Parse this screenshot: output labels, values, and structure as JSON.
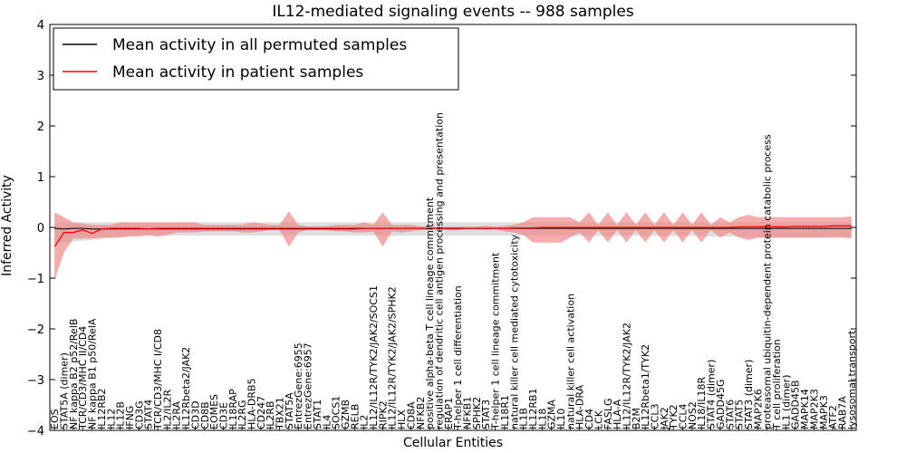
{
  "chart_data": {
    "type": "line",
    "title": "IL12-mediated signaling events -- 988 samples",
    "xlabel": "Cellular Entities",
    "ylabel": "Inferred Activity",
    "ylim": [
      -4,
      4
    ],
    "yticks": [
      -4,
      -3,
      -2,
      -1,
      0,
      1,
      2,
      3,
      4
    ],
    "ytick_labels": [
      "−4",
      "−3",
      "−2",
      "−1",
      "0",
      "1",
      "2",
      "3",
      "4"
    ],
    "legend": {
      "placement": "top-left",
      "entries": [
        {
          "label": "Mean activity in all permuted samples",
          "color": "#000000"
        },
        {
          "label": "Mean activity in patient samples",
          "color": "#ff0000"
        }
      ]
    },
    "colors": {
      "patient_line": "#ff0000",
      "patient_band": "#f08080",
      "permuted_line": "#000000",
      "permuted_band": "#c8c8c8"
    },
    "categories": [
      "EOS",
      "STAT5A (dimer)",
      "NF kappa B2 p52/RelB",
      "TCR/CD3/MHC II/CD4",
      "NF kappa B1 p50/RelA",
      "IL12RB2",
      "IL12",
      "IL12B",
      "IFNG",
      "CD3G",
      "STAT4",
      "TCR/CD3/MHC I/CD8",
      "IL2/IL2R",
      "IL2RA",
      "IL12Rbeta2/JAK2",
      "CD3D",
      "CD8B",
      "EOMES",
      "CD3E",
      "IL18RAP",
      "IL2RG",
      "HLA-DRB5",
      "CD247",
      "IL2RB",
      "TBX21",
      "STAT5A",
      "EntrezGene:6955",
      "EntrezGene:6957",
      "STAT1",
      "IL4",
      "SOCS1",
      "GZMB",
      "RELB",
      "IL2",
      "IL12/IL12R/TYK2/JAK2/SOCS1",
      "RIPK2",
      "IL12/IL12R/TYK2/JAK2/SPHK2",
      "HLX",
      "CD8A",
      "NFKB2",
      "positive alpha-beta T cell lineage commitment",
      "regulation of dendritic cell antigen processing and presentation",
      "ERAP1",
      "T-helper 1 cell differentiation",
      "NFKB1",
      "SPHK2",
      "STAT3",
      "T-helper 1 cell lineage commitment",
      "IL18R1",
      "natural killer cell mediated cytotoxicity",
      "IL1B",
      "IL12RB1",
      "IL18",
      "GZMA",
      "IL10",
      "natural killer cell activation",
      "HLA-DRA",
      "CD4",
      "LCK",
      "FASLG",
      "HLA-A",
      "IL12/IL12R/TYK2/JAK2",
      "B2M",
      "IL12Rbeta1/TYK2",
      "CCL3",
      "JAK2",
      "TYK2",
      "CCL4",
      "NOS2",
      "IL18/IL18R",
      "STAT4 (dimer)",
      "GADD45G",
      "STAT6",
      "STAT5",
      "STAT3 (dimer)",
      "MAP2K6",
      "proteasomal ubiquitin-dependent protein catabolic process",
      "T cell proliferation",
      "IL1 (dimer)",
      "GADD45B",
      "MAPK14",
      "MAP2K3",
      "MAPK3",
      "ATF2",
      "RAB7A",
      "lysosomal transport"
    ],
    "series": [
      {
        "name": "Mean activity in all permuted samples",
        "values": [
          -0.02,
          -0.03,
          -0.02,
          -0.02,
          -0.03,
          -0.03,
          -0.03,
          -0.03,
          -0.03,
          -0.03,
          -0.03,
          -0.03,
          -0.03,
          -0.03,
          -0.03,
          -0.03,
          -0.03,
          -0.03,
          -0.03,
          -0.03,
          -0.03,
          -0.03,
          -0.03,
          -0.03,
          -0.03,
          -0.03,
          -0.03,
          -0.03,
          -0.03,
          -0.03,
          -0.03,
          -0.03,
          -0.03,
          -0.02,
          -0.02,
          -0.02,
          -0.02,
          -0.02,
          -0.02,
          -0.02,
          -0.02,
          -0.02,
          -0.02,
          -0.02,
          -0.02,
          -0.02,
          -0.02,
          -0.02,
          -0.02,
          -0.02,
          -0.02,
          -0.02,
          -0.02,
          -0.02,
          -0.02,
          -0.02,
          -0.02,
          -0.02,
          -0.02,
          -0.02,
          -0.02,
          -0.02,
          -0.02,
          -0.02,
          -0.02,
          -0.02,
          -0.02,
          -0.02,
          -0.02,
          -0.02,
          -0.02,
          -0.02,
          -0.02,
          -0.02,
          -0.02,
          -0.02,
          -0.02,
          -0.02,
          -0.02,
          -0.02,
          -0.02,
          -0.02,
          -0.02,
          -0.02,
          -0.02,
          -0.02
        ]
      },
      {
        "name": "Mean activity in patient samples",
        "values": [
          -0.38,
          -0.1,
          -0.1,
          -0.05,
          -0.12,
          -0.03,
          -0.02,
          -0.02,
          -0.02,
          -0.02,
          -0.03,
          -0.02,
          -0.02,
          -0.02,
          -0.02,
          -0.02,
          -0.02,
          -0.02,
          -0.02,
          -0.02,
          -0.02,
          -0.02,
          -0.02,
          -0.02,
          -0.02,
          -0.02,
          -0.02,
          -0.02,
          -0.02,
          -0.02,
          -0.02,
          -0.02,
          -0.02,
          -0.02,
          -0.02,
          -0.02,
          -0.02,
          -0.02,
          -0.02,
          -0.02,
          -0.02,
          -0.02,
          -0.03,
          -0.03,
          -0.02,
          -0.02,
          -0.02,
          -0.02,
          -0.02,
          -0.01,
          -0.01,
          -0.01,
          0.0,
          0.0,
          0.0,
          0.0,
          0.0,
          0.0,
          0.0,
          0.0,
          0.0,
          0.0,
          0.0,
          0.0,
          0.0,
          0.0,
          0.0,
          0.0,
          0.0,
          0.0,
          0.0,
          0.0,
          0.0,
          0.01,
          0.01,
          0.01,
          0.01,
          0.01,
          0.01,
          0.02,
          0.02,
          0.02,
          0.02,
          0.03,
          0.03,
          0.03
        ]
      },
      {
        "name": "permuted_band_upper",
        "values": [
          0.1,
          0.1,
          0.1,
          0.1,
          0.1,
          0.1,
          0.1,
          0.1,
          0.1,
          0.1,
          0.1,
          0.1,
          0.1,
          0.1,
          0.1,
          0.1,
          0.1,
          0.1,
          0.1,
          0.1,
          0.1,
          0.1,
          0.1,
          0.1,
          0.1,
          0.1,
          0.1,
          0.1,
          0.1,
          0.1,
          0.1,
          0.1,
          0.1,
          0.1,
          0.1,
          0.1,
          0.1,
          0.1,
          0.1,
          0.1,
          0.1,
          0.1,
          0.1,
          0.1,
          0.1,
          0.1,
          0.1,
          0.1,
          0.1,
          0.1,
          0.1,
          0.1,
          0.1,
          0.1,
          0.1,
          0.1,
          0.1,
          0.1,
          0.1,
          0.1,
          0.1,
          0.1,
          0.1,
          0.1,
          0.1,
          0.1,
          0.1,
          0.1,
          0.1,
          0.1,
          0.1,
          0.1,
          0.1,
          0.1,
          0.1,
          0.1,
          0.1,
          0.1,
          0.1,
          0.1,
          0.1,
          0.1,
          0.1,
          0.1,
          0.1,
          0.1
        ]
      },
      {
        "name": "permuted_band_lower",
        "values": [
          -0.3,
          -0.3,
          -0.28,
          -0.26,
          -0.25,
          -0.22,
          -0.2,
          -0.18,
          -0.16,
          -0.16,
          -0.16,
          -0.16,
          -0.16,
          -0.16,
          -0.16,
          -0.16,
          -0.16,
          -0.16,
          -0.16,
          -0.16,
          -0.16,
          -0.16,
          -0.16,
          -0.16,
          -0.16,
          -0.16,
          -0.16,
          -0.16,
          -0.16,
          -0.16,
          -0.16,
          -0.16,
          -0.16,
          -0.16,
          -0.16,
          -0.16,
          -0.16,
          -0.16,
          -0.16,
          -0.16,
          -0.16,
          -0.16,
          -0.16,
          -0.16,
          -0.16,
          -0.16,
          -0.16,
          -0.16,
          -0.16,
          -0.16,
          -0.16,
          -0.16,
          -0.16,
          -0.16,
          -0.16,
          -0.16,
          -0.16,
          -0.16,
          -0.16,
          -0.16,
          -0.16,
          -0.16,
          -0.16,
          -0.17,
          -0.17,
          -0.17,
          -0.17,
          -0.17,
          -0.17,
          -0.17,
          -0.18,
          -0.18,
          -0.18,
          -0.18,
          -0.18,
          -0.2,
          -0.2,
          -0.2,
          -0.2,
          -0.2,
          -0.2,
          -0.2,
          -0.2,
          -0.18,
          -0.18,
          -0.17
        ]
      },
      {
        "name": "patient_band_upper",
        "values": [
          0.3,
          0.2,
          0.1,
          0.08,
          0.05,
          0.05,
          0.05,
          0.1,
          0.1,
          0.1,
          0.1,
          0.1,
          0.1,
          0.1,
          0.1,
          0.1,
          0.05,
          0.05,
          0.05,
          0.05,
          0.05,
          0.1,
          0.08,
          0.05,
          0.05,
          0.32,
          0.05,
          0.02,
          0.02,
          0.02,
          0.05,
          0.05,
          0.05,
          0.1,
          0.05,
          0.3,
          0.05,
          0.05,
          0.05,
          0.02,
          0.01,
          0.01,
          0.01,
          0.01,
          0.01,
          0.01,
          0.03,
          0.01,
          0.03,
          0.05,
          0.1,
          0.2,
          0.2,
          0.2,
          0.2,
          0.2,
          0.1,
          0.3,
          0.05,
          0.3,
          0.05,
          0.3,
          0.05,
          0.3,
          0.05,
          0.3,
          0.05,
          0.3,
          0.05,
          0.3,
          0.05,
          0.2,
          0.1,
          0.2,
          0.25,
          0.2,
          0.2,
          0.2,
          0.2,
          0.2,
          0.2,
          0.2,
          0.2,
          0.2,
          0.2,
          0.22
        ]
      },
      {
        "name": "patient_band_lower",
        "values": [
          -1.05,
          -0.5,
          -0.22,
          -0.22,
          -0.22,
          -0.2,
          -0.2,
          -0.2,
          -0.18,
          -0.18,
          -0.15,
          -0.18,
          -0.15,
          -0.1,
          -0.1,
          -0.1,
          -0.08,
          -0.08,
          -0.08,
          -0.08,
          -0.1,
          -0.1,
          -0.08,
          -0.05,
          -0.05,
          -0.38,
          -0.1,
          -0.05,
          -0.05,
          -0.05,
          -0.08,
          -0.08,
          -0.1,
          -0.1,
          -0.08,
          -0.38,
          -0.08,
          -0.1,
          -0.08,
          -0.05,
          -0.05,
          -0.03,
          -0.03,
          -0.03,
          -0.03,
          -0.03,
          -0.05,
          -0.03,
          -0.08,
          -0.1,
          -0.15,
          -0.3,
          -0.3,
          -0.3,
          -0.3,
          -0.2,
          -0.1,
          -0.3,
          -0.05,
          -0.3,
          -0.05,
          -0.3,
          -0.05,
          -0.3,
          -0.05,
          -0.3,
          -0.05,
          -0.3,
          -0.05,
          -0.3,
          -0.05,
          -0.2,
          -0.1,
          -0.2,
          -0.25,
          -0.2,
          -0.2,
          -0.2,
          -0.2,
          -0.2,
          -0.2,
          -0.2,
          -0.2,
          -0.2,
          -0.2,
          -0.22
        ]
      }
    ]
  }
}
